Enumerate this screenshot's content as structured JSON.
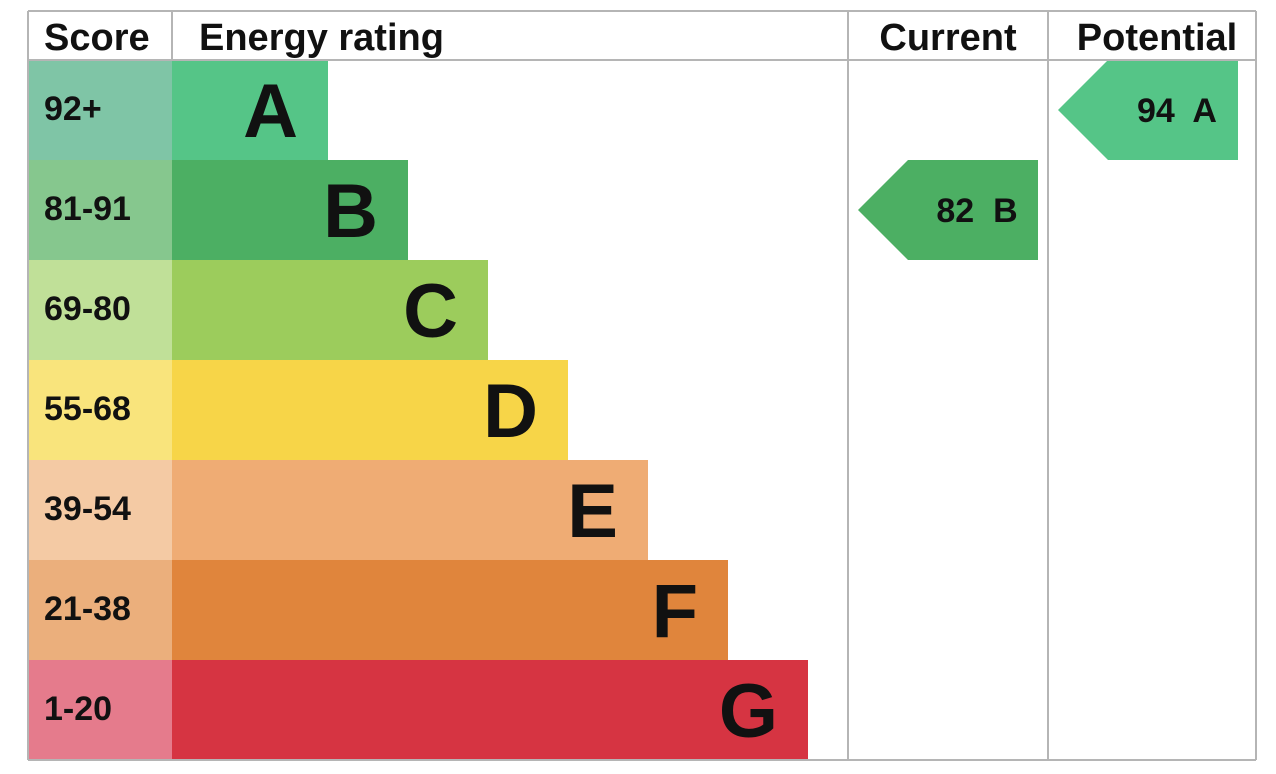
{
  "chart_data": {
    "type": "bar",
    "headers": {
      "score": "Score",
      "rating": "Energy rating",
      "current": "Current",
      "potential": "Potential"
    },
    "bands": [
      {
        "band": "A",
        "range": "92+",
        "color": "#55c587",
        "score_color": "#7fc5a6"
      },
      {
        "band": "B",
        "range": "81-91",
        "color": "#4caf63",
        "score_color": "#86c78e"
      },
      {
        "band": "C",
        "range": "69-80",
        "color": "#9ccc5c",
        "score_color": "#c0e098"
      },
      {
        "band": "D",
        "range": "55-68",
        "color": "#f7d548",
        "score_color": "#f9e47c"
      },
      {
        "band": "E",
        "range": "39-54",
        "color": "#efac74",
        "score_color": "#f4caa4"
      },
      {
        "band": "F",
        "range": "21-38",
        "color": "#e0853c",
        "score_color": "#ebaf7c"
      },
      {
        "band": "G",
        "range": "1-20",
        "color": "#d63442",
        "score_color": "#e57b8c"
      }
    ],
    "current": {
      "value": 82,
      "band": "B",
      "label": "82  B",
      "color": "#4caf63"
    },
    "potential": {
      "value": 94,
      "band": "A",
      "label": "94  A",
      "color": "#55c587"
    }
  }
}
